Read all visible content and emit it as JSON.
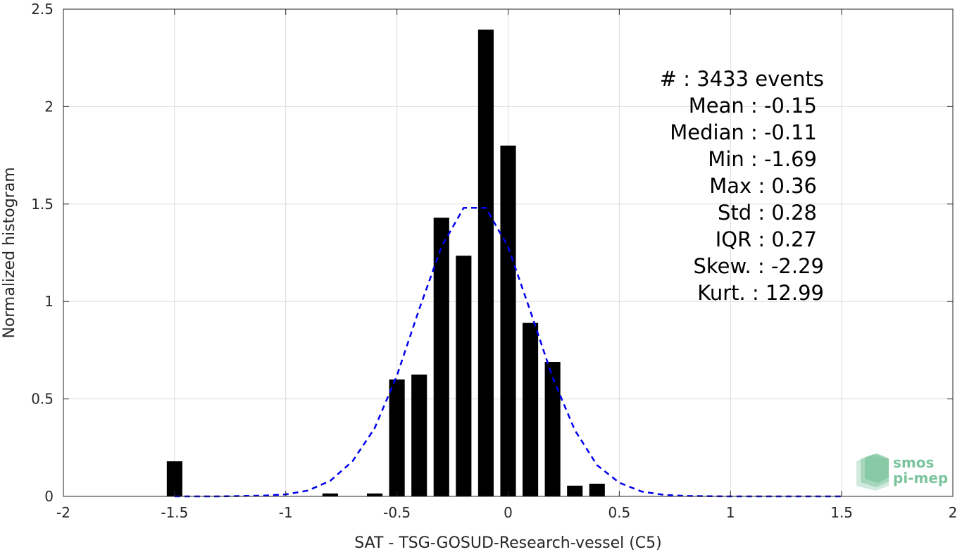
{
  "chart_data": {
    "type": "bar",
    "xlabel": "SAT - TSG-GOSUD-Research-vessel (C5)",
    "ylabel": "Normalized histogram",
    "xlim": [
      -2,
      2
    ],
    "ylim": [
      0,
      2.5
    ],
    "xticks": [
      "-2",
      "-1.5",
      "-1",
      "-0.5",
      "0",
      "0.5",
      "1",
      "1.5",
      "2"
    ],
    "yticks": [
      "0",
      "0.5",
      "1",
      "1.5",
      "2",
      "2.5"
    ],
    "grid": true,
    "bar_color": "#000000",
    "bar_width": 0.07,
    "bars": [
      {
        "x": -1.5,
        "y": 0.18
      },
      {
        "x": -0.8,
        "y": 0.015
      },
      {
        "x": -0.6,
        "y": 0.015
      },
      {
        "x": -0.5,
        "y": 0.6
      },
      {
        "x": -0.4,
        "y": 0.625
      },
      {
        "x": -0.3,
        "y": 1.43
      },
      {
        "x": -0.2,
        "y": 1.235
      },
      {
        "x": -0.1,
        "y": 2.395
      },
      {
        "x": 0.0,
        "y": 1.8
      },
      {
        "x": 0.1,
        "y": 0.89
      },
      {
        "x": 0.2,
        "y": 0.69
      },
      {
        "x": 0.3,
        "y": 0.055
      },
      {
        "x": 0.4,
        "y": 0.065
      }
    ],
    "fit_curve": {
      "style": "dashed",
      "color": "#0000ee",
      "x": [
        -1.5,
        -1.4,
        -1.3,
        -1.2,
        -1.1,
        -1.0,
        -0.9,
        -0.8,
        -0.7,
        -0.6,
        -0.5,
        -0.4,
        -0.3,
        -0.2,
        -0.1,
        0.0,
        0.1,
        0.2,
        0.3,
        0.4,
        0.5,
        0.6,
        0.7,
        0.8,
        0.9,
        1.0,
        1.1,
        1.2,
        1.3,
        1.4,
        1.5
      ],
      "y": [
        0.0,
        0.0,
        0.0,
        0.002,
        0.004,
        0.01,
        0.03,
        0.08,
        0.18,
        0.35,
        0.62,
        0.96,
        1.28,
        1.48,
        1.48,
        1.28,
        0.95,
        0.61,
        0.34,
        0.16,
        0.07,
        0.025,
        0.008,
        0.002,
        0.001,
        0.0,
        0.0,
        0.0,
        0.0,
        0.0,
        0.0
      ]
    },
    "stats": [
      "#  : 3433 events",
      "Mean : -0.15",
      "Median : -0.11",
      "Min : -1.69",
      "Max : 0.36",
      "Std : 0.28",
      "IQR : 0.27",
      "Skew. : -2.29",
      "Kurt. : 12.99"
    ]
  },
  "logo": {
    "line1": "smos",
    "line2": "pi-mep",
    "color": "#7cc49d"
  }
}
